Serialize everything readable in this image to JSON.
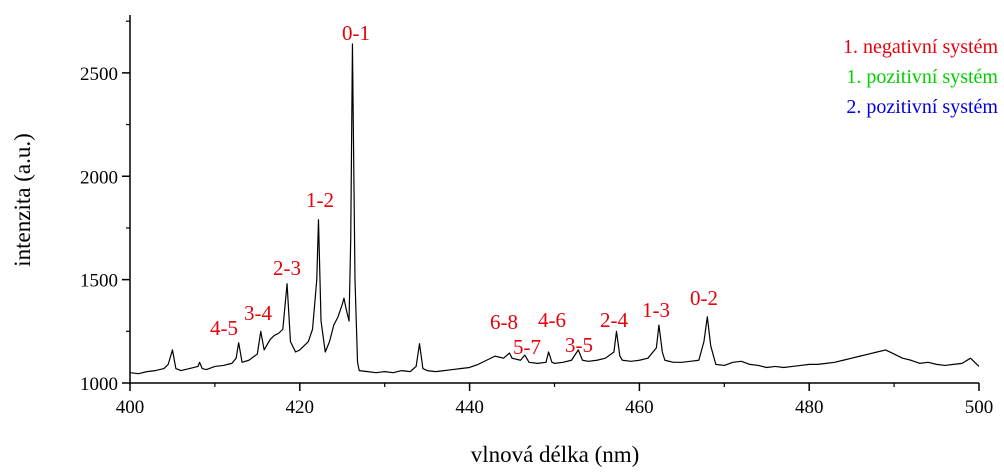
{
  "chart_data": {
    "type": "line",
    "xlabel": "vlnová délka (nm)",
    "ylabel": "intenzita (a.u.)",
    "color": "#000000",
    "x": [
      400,
      401,
      402,
      403,
      404,
      404.5,
      405,
      405.4,
      406,
      407,
      408,
      408.2,
      408.5,
      409,
      410,
      411,
      412,
      412.5,
      412.8,
      413.2,
      414,
      415,
      415.4,
      415.8,
      416.5,
      417,
      417.5,
      418,
      418.5,
      418.9,
      419.5,
      420,
      420.5,
      421,
      421.5,
      422,
      422.2,
      422.5,
      423,
      423.5,
      424,
      424.5,
      425,
      425.2,
      425.5,
      425.8,
      426,
      426.2,
      426.5,
      426.8,
      427,
      428,
      429,
      430,
      431,
      432,
      433,
      433.7,
      434.1,
      434.5,
      435,
      436,
      437,
      438,
      439,
      440,
      441,
      442,
      443,
      444,
      444.7,
      445,
      446,
      446.5,
      447,
      448,
      449,
      449.3,
      449.7,
      450,
      451,
      452,
      452.8,
      453.3,
      454,
      455,
      456,
      457,
      457.3,
      457.7,
      458,
      459,
      460,
      461,
      462,
      462.3,
      462.7,
      463,
      464,
      465,
      466,
      467,
      467.6,
      468,
      468.4,
      469,
      470,
      471,
      472,
      473,
      474,
      475,
      476,
      477,
      478,
      479,
      480,
      481,
      482,
      483,
      484,
      485,
      486,
      487,
      488,
      489,
      490,
      491,
      492,
      493,
      494,
      495,
      496,
      497,
      498,
      499,
      500
    ],
    "values": [
      1050,
      1045,
      1055,
      1060,
      1070,
      1090,
      1160,
      1070,
      1060,
      1070,
      1080,
      1100,
      1070,
      1065,
      1080,
      1085,
      1095,
      1120,
      1195,
      1100,
      1110,
      1140,
      1250,
      1160,
      1210,
      1230,
      1240,
      1260,
      1480,
      1200,
      1150,
      1160,
      1180,
      1200,
      1260,
      1500,
      1790,
      1300,
      1150,
      1200,
      1280,
      1320,
      1380,
      1410,
      1350,
      1300,
      1700,
      2640,
      1500,
      1100,
      1060,
      1055,
      1050,
      1055,
      1050,
      1060,
      1055,
      1080,
      1190,
      1070,
      1060,
      1055,
      1060,
      1065,
      1070,
      1075,
      1090,
      1110,
      1130,
      1120,
      1145,
      1120,
      1110,
      1135,
      1100,
      1095,
      1100,
      1150,
      1100,
      1095,
      1100,
      1110,
      1160,
      1110,
      1105,
      1110,
      1120,
      1150,
      1250,
      1130,
      1110,
      1105,
      1110,
      1120,
      1170,
      1280,
      1150,
      1110,
      1100,
      1100,
      1105,
      1110,
      1200,
      1320,
      1180,
      1090,
      1085,
      1100,
      1105,
      1090,
      1085,
      1075,
      1080,
      1075,
      1080,
      1085,
      1090,
      1090,
      1095,
      1100,
      1110,
      1120,
      1130,
      1140,
      1150,
      1160,
      1140,
      1120,
      1110,
      1095,
      1100,
      1090,
      1085,
      1090,
      1095,
      1120,
      1080
    ],
    "xlim": [
      400,
      500
    ],
    "xticks": [
      400,
      420,
      440,
      460,
      480,
      500
    ],
    "xminorticks": [
      410,
      430,
      450,
      470,
      490
    ],
    "ylim": [
      1000,
      2780
    ],
    "yticks": [
      1000,
      1500,
      2000,
      2500
    ],
    "yminorticks": [
      1250,
      1750,
      2250,
      2750
    ],
    "annotations": [
      "0-1",
      "1-2",
      "2-3",
      "3-4",
      "4-5",
      "6-8",
      "5-7",
      "4-6",
      "3-5",
      "2-4",
      "1-3",
      "0-2"
    ],
    "legend": [
      {
        "text": "1. negativní systém",
        "color": "#e8000b"
      },
      {
        "text": "1. pozitivní systém",
        "color": "#00d000"
      },
      {
        "text": "2. pozitivní systém",
        "color": "#0000e0"
      }
    ]
  }
}
